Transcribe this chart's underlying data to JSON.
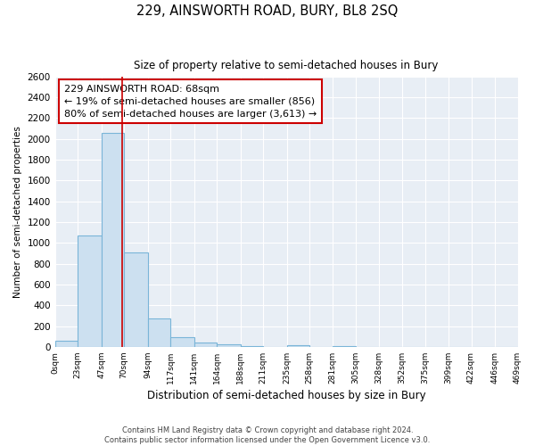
{
  "title": "229, AINSWORTH ROAD, BURY, BL8 2SQ",
  "subtitle": "Size of property relative to semi-detached houses in Bury",
  "xlabel": "Distribution of semi-detached houses by size in Bury",
  "ylabel": "Number of semi-detached properties",
  "bin_edges": [
    0,
    23,
    47,
    70,
    94,
    117,
    141,
    164,
    188,
    211,
    235,
    258,
    281,
    305,
    328,
    352,
    375,
    399,
    422,
    446,
    469
  ],
  "bin_counts": [
    55,
    1075,
    2060,
    910,
    270,
    90,
    40,
    20,
    10,
    0,
    15,
    0,
    10,
    0,
    0,
    0,
    0,
    0,
    0,
    0
  ],
  "bar_color": "#cce0f0",
  "bar_edge_color": "#7ab5d8",
  "property_line_x": 68,
  "property_line_color": "#cc0000",
  "annotation_text_line1": "229 AINSWORTH ROAD: 68sqm",
  "annotation_text_line2": "← 19% of semi-detached houses are smaller (856)",
  "annotation_text_line3": "80% of semi-detached houses are larger (3,613) →",
  "tick_labels": [
    "0sqm",
    "23sqm",
    "47sqm",
    "70sqm",
    "94sqm",
    "117sqm",
    "141sqm",
    "164sqm",
    "188sqm",
    "211sqm",
    "235sqm",
    "258sqm",
    "281sqm",
    "305sqm",
    "328sqm",
    "352sqm",
    "375sqm",
    "399sqm",
    "422sqm",
    "446sqm",
    "469sqm"
  ],
  "ylim": [
    0,
    2600
  ],
  "yticks": [
    0,
    200,
    400,
    600,
    800,
    1000,
    1200,
    1400,
    1600,
    1800,
    2000,
    2200,
    2400,
    2600
  ],
  "footnote1": "Contains HM Land Registry data © Crown copyright and database right 2024.",
  "footnote2": "Contains public sector information licensed under the Open Government Licence v3.0.",
  "background_color": "#ffffff",
  "plot_bg_color": "#e8eef5",
  "grid_color": "#ffffff"
}
